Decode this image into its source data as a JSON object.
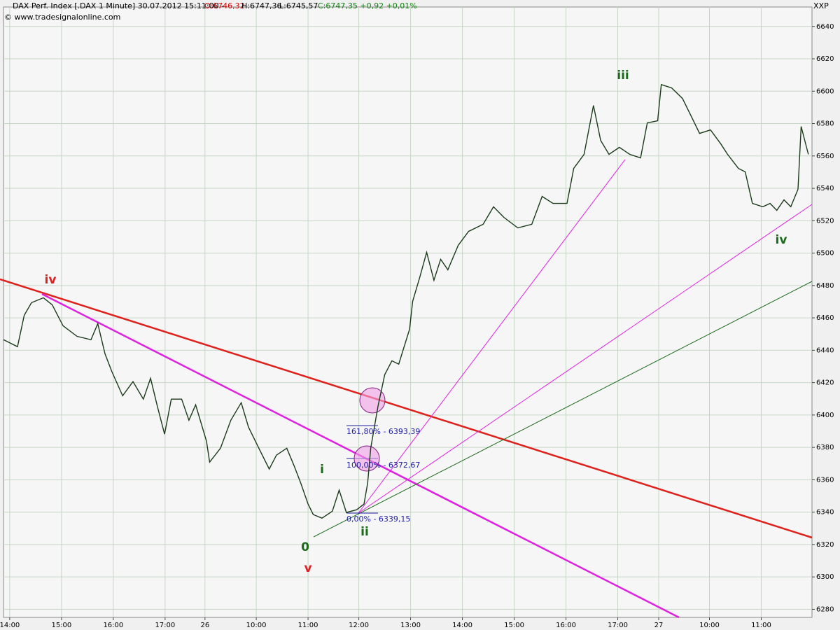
{
  "header": {
    "instrument": "DAX Perf. Index [.DAX  1 Minute] 30.07.2012 15:11:00 -",
    "open": "O:6746,32",
    "high": "H:6747,36",
    "low": "L:6745,57",
    "close": "C:6747,35 +0,92 +0,01%",
    "source": "© www.tradesignalonline.com",
    "corner": "XXP"
  },
  "annotations": {
    "waves": [
      "iv",
      "v",
      "0",
      "i",
      "ii",
      "iii",
      "iv"
    ],
    "fib": [
      "161,80% - 6393,39",
      "100,00% - 6372,67",
      "0,00% - 6339,15"
    ]
  },
  "chart_data": {
    "type": "line",
    "color": "#1a3a1a",
    "grid": true,
    "x": [
      -0.12,
      0.15,
      0.28,
      0.42,
      0.65,
      0.82,
      1.03,
      1.3,
      1.57,
      1.7,
      1.84,
      1.97,
      2.18,
      2.38,
      2.58,
      2.72,
      2.85,
      2.99,
      3.12,
      3.32,
      3.46,
      3.59,
      3.8,
      3.86,
      4.07,
      4.27,
      4.47,
      4.61,
      4.81,
      5.01,
      5.15,
      5.35,
      5.49,
      5.62,
      5.76,
      5.86,
      6.03,
      6.23,
      6.36,
      6.5,
      6.7,
      6.84,
      6.91,
      6.97,
      7.11,
      7.24,
      7.38,
      7.51,
      7.72,
      7.78,
      7.92,
      8.05,
      8.19,
      8.32,
      8.46,
      8.66,
      8.86,
      9.14,
      9.34,
      9.54,
      9.81,
      10.08,
      10.28,
      10.49,
      10.76,
      10.89,
      11.09,
      11.27,
      11.41,
      11.57,
      11.77,
      11.97,
      12.18,
      12.31,
      12.51,
      12.58,
      12.78,
      12.99,
      13.19,
      13.32,
      13.53,
      13.73,
      13.86,
      14.07,
      14.2,
      14.34,
      14.54,
      14.68,
      14.81,
      14.95,
      15.08,
      15.22,
      15.28,
      15.42
    ],
    "series": [
      {
        "name": "DAX",
        "color": "#1a3a1a",
        "values": [
          6446.5,
          6442.2,
          6461.6,
          6469.4,
          6472.4,
          6468.1,
          6455.1,
          6448.6,
          6446.5,
          6456.4,
          6437.8,
          6427,
          6411.9,
          6420.6,
          6409.8,
          6422.7,
          6405.4,
          6388.2,
          6409.8,
          6409.8,
          6396.8,
          6406.3,
          6383.8,
          6370.9,
          6379.5,
          6396.8,
          6407.6,
          6392.5,
          6379.5,
          6366.6,
          6375.2,
          6379.5,
          6368.7,
          6357.9,
          6345,
          6338.5,
          6336.3,
          6340.6,
          6353.6,
          6339.8,
          6341.5,
          6345,
          6357.9,
          6379.5,
          6405.4,
          6424.9,
          6433.5,
          6431.4,
          6453,
          6470.2,
          6485.4,
          6500.5,
          6483.2,
          6496.2,
          6489.7,
          6504.8,
          6513.4,
          6517.8,
          6528.6,
          6522.1,
          6515.6,
          6517.8,
          6535,
          6530.7,
          6530.7,
          6552.3,
          6561,
          6591.2,
          6569.6,
          6561,
          6565.3,
          6561,
          6558.8,
          6580.4,
          6581.7,
          6604.1,
          6602,
          6595.5,
          6582.5,
          6573.9,
          6576.1,
          6567.4,
          6561,
          6552.3,
          6550.2,
          6530.7,
          6528.6,
          6530.7,
          6526.4,
          6532.9,
          6528.6,
          6539.4,
          6578.2,
          6561
        ]
      }
    ],
    "xlim": [
      -0.12,
      15.49
    ],
    "xticks": [
      {
        "value": 0,
        "label": "14:00"
      },
      {
        "value": 1,
        "label": "15:00"
      },
      {
        "value": 2,
        "label": "16:00"
      },
      {
        "value": 3,
        "label": "17:00"
      },
      {
        "value": 3.77,
        "label": "26"
      },
      {
        "value": 4.76,
        "label": "10:00"
      },
      {
        "value": 5.76,
        "label": "11:00"
      },
      {
        "value": 6.74,
        "label": "12:00"
      },
      {
        "value": 7.74,
        "label": "13:00"
      },
      {
        "value": 8.74,
        "label": "14:00"
      },
      {
        "value": 9.74,
        "label": "15:00"
      },
      {
        "value": 10.74,
        "label": "16:00"
      },
      {
        "value": 11.74,
        "label": "17:00"
      },
      {
        "value": 12.53,
        "label": "27"
      },
      {
        "value": 13.51,
        "label": "10:00"
      },
      {
        "value": 14.51,
        "label": "11:00"
      }
    ],
    "ylim": [
      6275,
      6652
    ],
    "yticks": [
      6280,
      6300,
      6320,
      6340,
      6360,
      6380,
      6400,
      6420,
      6440,
      6460,
      6480,
      6500,
      6520,
      6540,
      6560,
      6580,
      6600,
      6620,
      6640
    ]
  }
}
